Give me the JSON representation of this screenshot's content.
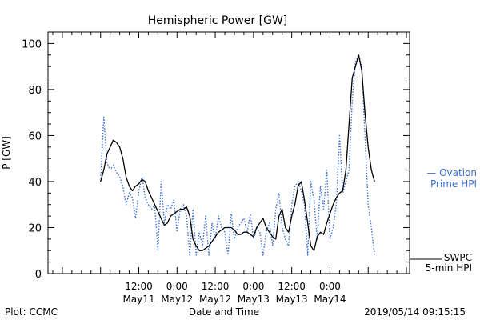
{
  "chart_data": {
    "type": "line",
    "title": "Hemispheric Power [GW]",
    "ylabel": "P [GW]",
    "xlabel": "Date and Time",
    "ylim": [
      0,
      105
    ],
    "yticks": [
      0,
      20,
      40,
      60,
      80,
      100
    ],
    "xlim_hours": [
      -16.5,
      97
    ],
    "xticks": [
      {
        "hour": 12,
        "time": "12:00",
        "date": "May11"
      },
      {
        "hour": 24,
        "time": "0:00",
        "date": "May12"
      },
      {
        "hour": 36,
        "time": "12:00",
        "date": "May12"
      },
      {
        "hour": 48,
        "time": "0:00",
        "date": "May13"
      },
      {
        "hour": 60,
        "time": "12:00",
        "date": "May13"
      },
      {
        "hour": 72,
        "time": "0:00",
        "date": "May14"
      }
    ],
    "grid": false,
    "series": [
      {
        "name": "Ovation Prime HPI",
        "color": "#3a6fd8",
        "style": "dotted",
        "x": [
          0,
          1,
          2,
          3,
          4,
          5,
          6,
          7,
          8,
          9,
          10,
          11,
          12,
          13,
          14,
          15,
          16,
          17,
          18,
          19,
          20,
          21,
          22,
          23,
          24,
          25,
          26,
          27,
          28,
          29,
          30,
          31,
          32,
          33,
          34,
          35,
          36,
          37,
          38,
          39,
          40,
          41,
          42,
          43,
          44,
          45,
          46,
          47,
          48,
          49,
          50,
          51,
          52,
          53,
          54,
          55,
          56,
          57,
          58,
          59,
          60,
          61,
          62,
          63,
          64,
          65,
          66,
          67,
          68,
          69,
          70,
          71,
          72,
          73,
          74,
          75,
          76,
          77,
          78,
          79,
          80,
          81,
          82,
          83,
          84,
          85,
          86
        ],
        "y": [
          40,
          68,
          48,
          45,
          47,
          44,
          42,
          38,
          30,
          35,
          33,
          24,
          36,
          42,
          33,
          30,
          28,
          30,
          10,
          40,
          22,
          30,
          28,
          32,
          18,
          28,
          30,
          25,
          8,
          28,
          8,
          18,
          12,
          25,
          8,
          22,
          15,
          25,
          20,
          18,
          8,
          26,
          15,
          20,
          22,
          24,
          18,
          26,
          15,
          20,
          18,
          8,
          18,
          22,
          12,
          28,
          35,
          20,
          15,
          12,
          30,
          38,
          40,
          36,
          30,
          8,
          40,
          32,
          15,
          38,
          28,
          45,
          15,
          20,
          30,
          60,
          35,
          40,
          45,
          75,
          92,
          95,
          90,
          60,
          30,
          20,
          8
        ]
      },
      {
        "name": "SWPC 5-min HPI",
        "color": "#000000",
        "style": "solid",
        "x": [
          0,
          1,
          2,
          3,
          4,
          5,
          6,
          7,
          8,
          9,
          10,
          11,
          12,
          13,
          14,
          15,
          16,
          17,
          18,
          19,
          20,
          21,
          22,
          23,
          24,
          25,
          26,
          27,
          28,
          29,
          30,
          31,
          32,
          33,
          34,
          35,
          36,
          37,
          38,
          39,
          40,
          41,
          42,
          43,
          44,
          45,
          46,
          47,
          48,
          49,
          50,
          51,
          52,
          53,
          54,
          55,
          56,
          57,
          58,
          59,
          60,
          61,
          62,
          63,
          64,
          65,
          66,
          67,
          68,
          69,
          70,
          71,
          72,
          73,
          74,
          75,
          76,
          77,
          78,
          79,
          80,
          81,
          82,
          83,
          84,
          85,
          86
        ],
        "y": [
          40,
          45,
          52,
          55,
          58,
          57,
          55,
          50,
          42,
          38,
          36,
          38,
          39,
          41,
          40,
          36,
          33,
          30,
          27,
          24,
          21,
          22,
          25,
          26,
          27,
          28,
          28,
          29,
          25,
          15,
          12,
          10,
          10,
          11,
          12,
          14,
          16,
          18,
          19,
          20,
          20,
          20,
          19,
          17,
          17,
          18,
          18,
          17,
          16,
          20,
          22,
          24,
          20,
          18,
          16,
          15,
          25,
          28,
          20,
          18,
          25,
          30,
          38,
          40,
          32,
          22,
          12,
          10,
          16,
          18,
          17,
          22,
          26,
          30,
          33,
          35,
          36,
          45,
          65,
          85,
          90,
          95,
          88,
          70,
          55,
          45,
          40
        ]
      }
    ],
    "legend": [
      {
        "lines": [
          "— Ovation",
          "Prime HPI"
        ],
        "color": "#3a6fd8"
      },
      {
        "lines": [
          "SWPC",
          "5-min HPI"
        ],
        "color": "#000000"
      }
    ],
    "footer": {
      "left": "Plot: CCMC",
      "right": "2019/05/14 09:15:15"
    }
  }
}
